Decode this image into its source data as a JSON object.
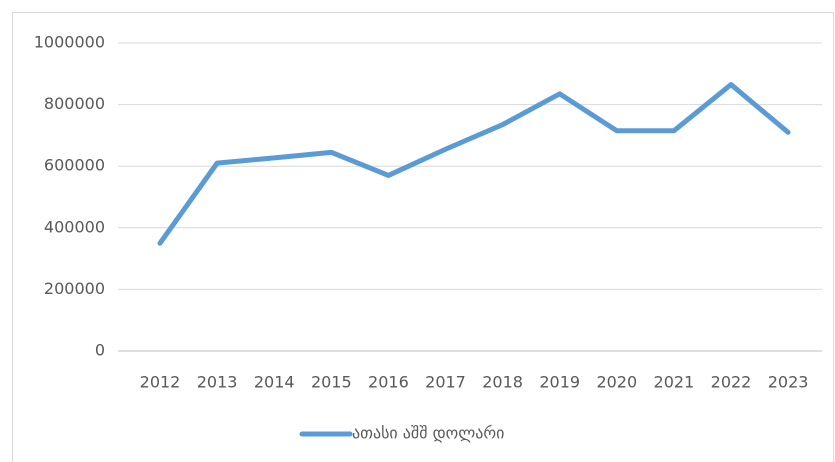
{
  "chart_data": {
    "type": "line",
    "categories": [
      "2012",
      "2013",
      "2014",
      "2015",
      "2016",
      "2017",
      "2018",
      "2019",
      "2020",
      "2021",
      "2022",
      "2023"
    ],
    "series": [
      {
        "name": "ათასი აშშ დოლარი",
        "color": "#5b9bd5",
        "values": [
          350000,
          610000,
          627000,
          645000,
          570000,
          655000,
          735000,
          835000,
          715000,
          715000,
          865000,
          710000
        ]
      }
    ],
    "ylim": [
      0,
      1000000
    ],
    "yticks": [
      0,
      200000,
      400000,
      600000,
      800000,
      1000000
    ],
    "grid": true,
    "legend": "bottom"
  }
}
